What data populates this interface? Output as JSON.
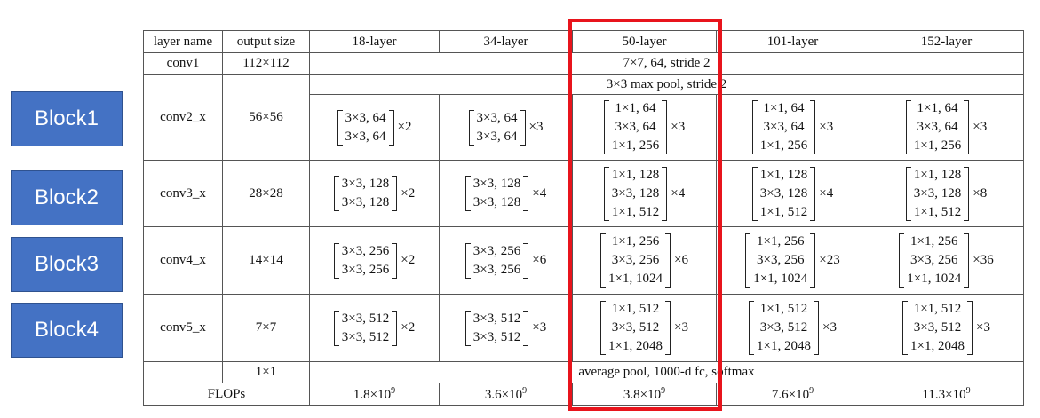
{
  "blocks": [
    "Block1",
    "Block2",
    "Block3",
    "Block4"
  ],
  "table": {
    "headers": [
      "layer name",
      "output size",
      "18-layer",
      "34-layer",
      "50-layer",
      "101-layer",
      "152-layer"
    ],
    "conv1": {
      "name": "conv1",
      "size": "112×112",
      "spec": "7×7, 64, stride 2"
    },
    "pool": {
      "spec": "3×3 max pool, stride 2"
    },
    "stages": [
      {
        "name": "conv2_x",
        "size": "56×56",
        "cells": [
          {
            "lines": [
              "3×3, 64",
              "3×3, 64"
            ],
            "mult": "×2"
          },
          {
            "lines": [
              "3×3, 64",
              "3×3, 64"
            ],
            "mult": "×3"
          },
          {
            "lines": [
              "1×1, 64",
              "3×3, 64",
              "1×1, 256"
            ],
            "mult": "×3"
          },
          {
            "lines": [
              "1×1, 64",
              "3×3, 64",
              "1×1, 256"
            ],
            "mult": "×3"
          },
          {
            "lines": [
              "1×1, 64",
              "3×3, 64",
              "1×1, 256"
            ],
            "mult": "×3"
          }
        ]
      },
      {
        "name": "conv3_x",
        "size": "28×28",
        "cells": [
          {
            "lines": [
              "3×3, 128",
              "3×3, 128"
            ],
            "mult": "×2"
          },
          {
            "lines": [
              "3×3, 128",
              "3×3, 128"
            ],
            "mult": "×4"
          },
          {
            "lines": [
              "1×1, 128",
              "3×3, 128",
              "1×1, 512"
            ],
            "mult": "×4"
          },
          {
            "lines": [
              "1×1, 128",
              "3×3, 128",
              "1×1, 512"
            ],
            "mult": "×4"
          },
          {
            "lines": [
              "1×1, 128",
              "3×3, 128",
              "1×1, 512"
            ],
            "mult": "×8"
          }
        ]
      },
      {
        "name": "conv4_x",
        "size": "14×14",
        "cells": [
          {
            "lines": [
              "3×3, 256",
              "3×3, 256"
            ],
            "mult": "×2"
          },
          {
            "lines": [
              "3×3, 256",
              "3×3, 256"
            ],
            "mult": "×6"
          },
          {
            "lines": [
              "1×1, 256",
              "3×3, 256",
              "1×1, 1024"
            ],
            "mult": "×6"
          },
          {
            "lines": [
              "1×1, 256",
              "3×3, 256",
              "1×1, 1024"
            ],
            "mult": "×23"
          },
          {
            "lines": [
              "1×1, 256",
              "3×3, 256",
              "1×1, 1024"
            ],
            "mult": "×36"
          }
        ]
      },
      {
        "name": "conv5_x",
        "size": "7×7",
        "cells": [
          {
            "lines": [
              "3×3, 512",
              "3×3, 512"
            ],
            "mult": "×2"
          },
          {
            "lines": [
              "3×3, 512",
              "3×3, 512"
            ],
            "mult": "×3"
          },
          {
            "lines": [
              "1×1, 512",
              "3×3, 512",
              "1×1, 2048"
            ],
            "mult": "×3"
          },
          {
            "lines": [
              "1×1, 512",
              "3×3, 512",
              "1×1, 2048"
            ],
            "mult": "×3"
          },
          {
            "lines": [
              "1×1, 512",
              "3×3, 512",
              "1×1, 2048"
            ],
            "mult": "×3"
          }
        ]
      }
    ],
    "final": {
      "size": "1×1",
      "spec": "average pool, 1000-d fc, softmax"
    },
    "flops": {
      "label": "FLOPs",
      "values": [
        {
          "base": "1.8×10",
          "exp": "9"
        },
        {
          "base": "3.6×10",
          "exp": "9"
        },
        {
          "base": "3.8×10",
          "exp": "9"
        },
        {
          "base": "7.6×10",
          "exp": "9"
        },
        {
          "base": "11.3×10",
          "exp": "9"
        }
      ]
    }
  },
  "colors": {
    "block": "#4472c4",
    "highlight": "#e8141c"
  }
}
